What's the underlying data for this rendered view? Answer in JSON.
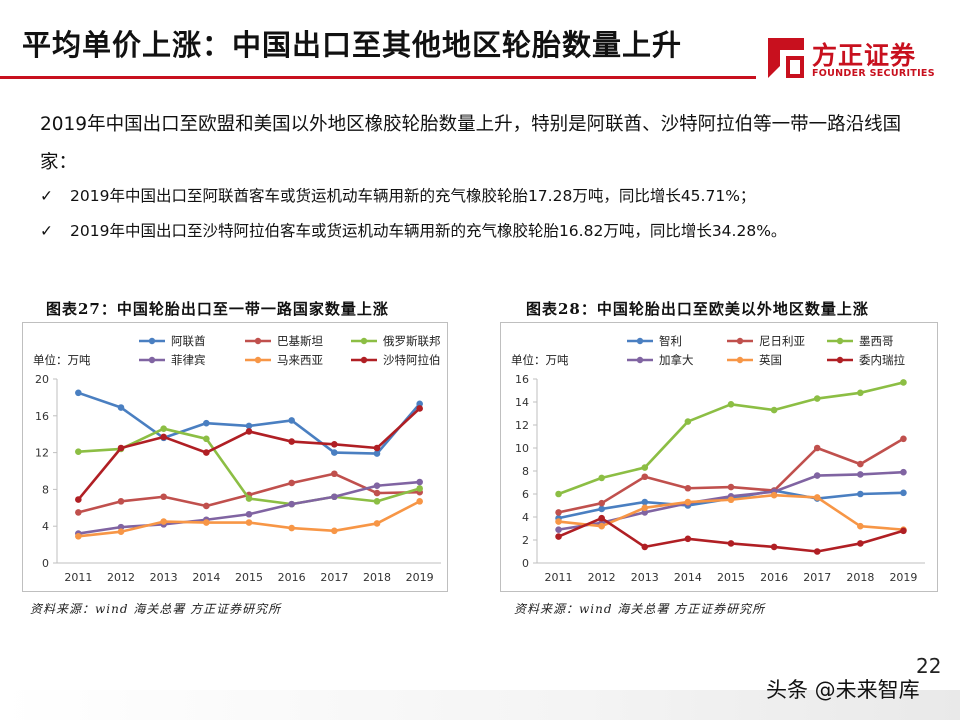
{
  "header": {
    "title": "平均单价上涨：中国出口至其他地区轮胎数量上升",
    "logo_name": "方正证券",
    "logo_sub": "FOUNDER SECURITIES",
    "brand_color": "#c8101e"
  },
  "intro_text": "2019年中国出口至欧盟和美国以外地区橡胶轮胎数量上升，特别是阿联酋、沙特阿拉伯等一带一路沿线国家：",
  "bullets": [
    "2019年中国出口至阿联酋客车或货运机动车辆用新的充气橡胶轮胎17.28万吨，同比增长45.71%；",
    "2019年中国出口至沙特阿拉伯客车或货运机动车辆用新的充气橡胶轮胎16.82万吨，同比增长34.28%。"
  ],
  "bullet_icon": "checkmark-icon",
  "page_number": "22",
  "watermark": "头条 @未来智库",
  "chart_data": [
    {
      "type": "line",
      "title": "图表27：中国轮胎出口至一带一路国家数量上涨",
      "unit_label": "单位：万吨",
      "source": "资料来源：wind 海关总署 方正证券研究所",
      "x": [
        "2011",
        "2012",
        "2013",
        "2014",
        "2015",
        "2016",
        "2017",
        "2018",
        "2019"
      ],
      "ylim": [
        0,
        20
      ],
      "yticks": [
        0,
        4,
        8,
        12,
        16,
        20
      ],
      "grid": false,
      "legend_position": "top",
      "series": [
        {
          "name": "阿联酋",
          "color": "#4a7fc1",
          "values": [
            18.5,
            16.9,
            13.6,
            15.2,
            14.9,
            15.5,
            12.0,
            11.9,
            17.3
          ]
        },
        {
          "name": "巴基斯坦",
          "color": "#c0504d",
          "values": [
            5.5,
            6.7,
            7.2,
            6.2,
            7.4,
            8.7,
            9.7,
            7.6,
            7.7
          ]
        },
        {
          "name": "俄罗斯联邦",
          "color": "#8cbe44",
          "values": [
            12.1,
            12.4,
            14.6,
            13.5,
            7.0,
            6.4,
            7.2,
            6.7,
            8.1
          ]
        },
        {
          "name": "菲律宾",
          "color": "#8064a2",
          "values": [
            3.2,
            3.9,
            4.2,
            4.7,
            5.3,
            6.4,
            7.2,
            8.4,
            8.8
          ]
        },
        {
          "name": "马来西亚",
          "color": "#f79646",
          "values": [
            2.9,
            3.4,
            4.5,
            4.4,
            4.4,
            3.8,
            3.5,
            4.3,
            6.7
          ]
        },
        {
          "name": "沙特阿拉伯",
          "color": "#b01f24",
          "values": [
            6.9,
            12.5,
            13.7,
            12.0,
            14.3,
            13.2,
            12.9,
            12.5,
            16.8
          ]
        }
      ]
    },
    {
      "type": "line",
      "title": "图表28：中国轮胎出口至欧美以外地区数量上涨",
      "unit_label": "单位：万吨",
      "source": "资料来源：wind 海关总署 方正证券研究所",
      "x": [
        "2011",
        "2012",
        "2013",
        "2014",
        "2015",
        "2016",
        "2017",
        "2018",
        "2019"
      ],
      "ylim": [
        0,
        16
      ],
      "yticks": [
        0,
        2,
        4,
        6,
        8,
        10,
        12,
        14,
        16
      ],
      "grid": false,
      "legend_position": "top",
      "series": [
        {
          "name": "智利",
          "color": "#4a7fc1",
          "values": [
            3.9,
            4.7,
            5.3,
            5.0,
            5.6,
            6.3,
            5.6,
            6.0,
            6.1
          ]
        },
        {
          "name": "尼日利亚",
          "color": "#c0504d",
          "values": [
            4.4,
            5.2,
            7.5,
            6.5,
            6.6,
            6.3,
            10.0,
            8.6,
            10.8
          ]
        },
        {
          "name": "墨西哥",
          "color": "#8cbe44",
          "values": [
            6.0,
            7.4,
            8.3,
            12.3,
            13.8,
            13.3,
            14.3,
            14.8,
            15.7
          ]
        },
        {
          "name": "加拿大",
          "color": "#8064a2",
          "values": [
            2.9,
            3.5,
            4.4,
            5.2,
            5.8,
            6.2,
            7.6,
            7.7,
            7.9
          ]
        },
        {
          "name": "英国",
          "color": "#f79646",
          "values": [
            3.6,
            3.2,
            4.8,
            5.3,
            5.5,
            5.9,
            5.7,
            3.2,
            2.9
          ]
        },
        {
          "name": "委内瑞拉",
          "color": "#b01f24",
          "values": [
            2.3,
            3.9,
            1.4,
            2.1,
            1.7,
            1.4,
            1.0,
            1.7,
            2.8
          ]
        }
      ]
    }
  ]
}
